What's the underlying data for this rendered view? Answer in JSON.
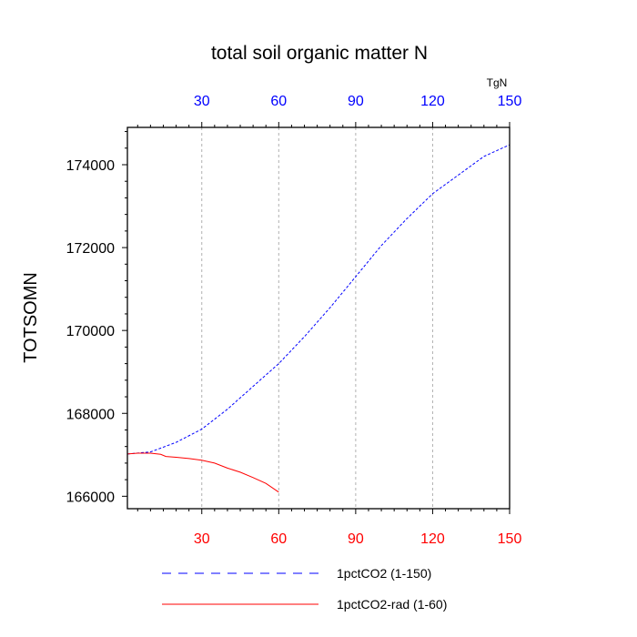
{
  "chart_data": {
    "type": "line",
    "title": "total soil organic matter N",
    "ylabel": "TOTSOMN",
    "top_axis_unit": "TgN",
    "xlim": [
      1,
      150
    ],
    "ylim": [
      165700,
      174900
    ],
    "grid": "vertical-dashed",
    "x_ticks": [
      "30",
      "60",
      "90",
      "120",
      "150"
    ],
    "y_ticks": [
      "166000",
      "168000",
      "170000",
      "172000",
      "174000"
    ],
    "top_tick_color": "#0000ff",
    "bottom_tick_color": "#ff0000",
    "series": [
      {
        "name": "1pctCO2 (1-150)",
        "color": "#0000ff",
        "style": "dashed",
        "x": [
          1,
          10,
          20,
          30,
          40,
          50,
          60,
          70,
          80,
          90,
          100,
          110,
          120,
          130,
          140,
          150
        ],
        "y": [
          167020,
          167070,
          167300,
          167620,
          168100,
          168650,
          169200,
          169850,
          170550,
          171300,
          172050,
          172700,
          173300,
          173750,
          174200,
          174480
        ]
      },
      {
        "name": "1pctCO2-rad (1-60)",
        "color": "#ff0000",
        "style": "solid",
        "x": [
          1,
          5,
          10,
          14,
          16,
          20,
          25,
          30,
          35,
          40,
          45,
          50,
          55,
          60
        ],
        "y": [
          167020,
          167040,
          167040,
          167010,
          166960,
          166940,
          166910,
          166870,
          166800,
          166680,
          166580,
          166450,
          166310,
          166100
        ]
      }
    ]
  }
}
